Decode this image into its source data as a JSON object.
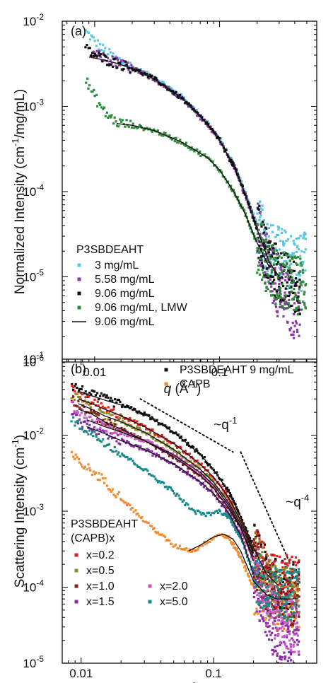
{
  "chart_data": [
    {
      "type": "scatter",
      "panel_label": "(a)",
      "xlabel": "q (Å⁻¹)",
      "xlabel_var": "q",
      "xlabel_unit": " (Å",
      "xlabel_unit_sup": "-1",
      "xlabel_unit_end": ")",
      "ylabel": "Normalized Intensity (cm⁻¹/mg/mL)",
      "ylabel_main": "Normalized Intensity (cm",
      "ylabel_sup": "-1",
      "ylabel_end": "/mg/mL)",
      "xscale": "log",
      "yscale": "log",
      "xlim": [
        0.0055,
        0.6
      ],
      "ylim": [
        1e-06,
        0.01
      ],
      "x_ticks": [
        {
          "v": 0.01,
          "label": "0.01"
        },
        {
          "v": 0.1,
          "label": "0.1"
        }
      ],
      "y_ticks": [
        {
          "v": 1e-06,
          "base": "10",
          "exp": "-6"
        },
        {
          "v": 1e-05,
          "base": "10",
          "exp": "-5"
        },
        {
          "v": 0.0001,
          "base": "10",
          "exp": "-4"
        },
        {
          "v": 0.001,
          "base": "10",
          "exp": "-3"
        },
        {
          "v": 0.01,
          "base": "10",
          "exp": "-2"
        }
      ],
      "legend": {
        "title": "P3SBDEAHT",
        "placement": "lower-left"
      },
      "series": [
        {
          "name": "3 mg/mL",
          "color": "#5bc8e0",
          "style": "points",
          "x": [
            0.0085,
            0.01,
            0.012,
            0.015,
            0.02,
            0.03,
            0.05,
            0.08,
            0.1,
            0.13,
            0.16,
            0.2,
            0.25,
            0.3,
            0.35,
            0.4,
            0.45,
            0.5
          ],
          "y": [
            0.0075,
            0.0058,
            0.0045,
            0.0036,
            0.0029,
            0.0022,
            0.0013,
            0.00065,
            0.00042,
            0.00021,
            0.0001,
            4e-05,
            2.2e-05,
            1.8e-05,
            1.6e-05,
            1.5e-05,
            1.5e-05,
            1.5e-05
          ]
        },
        {
          "name": "5.58 mg/mL",
          "color": "#8a3aa8",
          "style": "points",
          "x": [
            0.0095,
            0.012,
            0.015,
            0.02,
            0.03,
            0.05,
            0.08,
            0.1,
            0.13,
            0.16,
            0.2,
            0.25,
            0.3,
            0.35,
            0.4,
            0.45
          ],
          "y": [
            0.0042,
            0.0037,
            0.0033,
            0.0028,
            0.0021,
            0.00125,
            0.00062,
            0.0004,
            0.0002,
            9.5e-05,
            3.6e-05,
            1.3e-05,
            7e-06,
            5e-06,
            4e-06,
            4e-06
          ]
        },
        {
          "name": "9.06 mg/mL",
          "color": "#111111",
          "style": "points",
          "x": [
            0.0085,
            0.01,
            0.012,
            0.015,
            0.02,
            0.03,
            0.05,
            0.08,
            0.1,
            0.13,
            0.16,
            0.2,
            0.25,
            0.3,
            0.35,
            0.4,
            0.45
          ],
          "y": [
            0.0048,
            0.004,
            0.0036,
            0.0032,
            0.0028,
            0.0021,
            0.00125,
            0.00062,
            0.0004,
            0.0002,
            9.5e-05,
            3.6e-05,
            1.5e-05,
            1e-05,
            8.5e-06,
            8e-06,
            8e-06
          ]
        },
        {
          "name": "9.06 mg/mL, LMW",
          "color": "#2e8b3a",
          "style": "points",
          "x": [
            0.0085,
            0.01,
            0.012,
            0.015,
            0.02,
            0.03,
            0.05,
            0.08,
            0.1,
            0.13,
            0.16,
            0.2,
            0.25,
            0.3,
            0.35,
            0.4,
            0.45,
            0.5
          ],
          "y": [
            0.002,
            0.0013,
            0.00085,
            0.00065,
            0.0006,
            0.00052,
            0.00038,
            0.00025,
            0.00018,
            0.0001,
            5.5e-05,
            2.5e-05,
            1.3e-05,
            9e-06,
            8.5e-06,
            8e-06,
            8e-06,
            8e-06
          ]
        },
        {
          "name": "9.06 mg/mL",
          "color": "#111111",
          "style": "line",
          "x": [
            0.009,
            0.012,
            0.015,
            0.02,
            0.03,
            0.05,
            0.08,
            0.1,
            0.13,
            0.16,
            0.2,
            0.25,
            0.3
          ],
          "y": [
            0.0038,
            0.0035,
            0.0032,
            0.0028,
            0.0021,
            0.00125,
            0.00062,
            0.0004,
            0.0002,
            9.5e-05,
            3.6e-05,
            1.5e-05,
            1e-05
          ]
        },
        {
          "name": "",
          "color": "#111111",
          "style": "line",
          "x": [
            0.015,
            0.02,
            0.03,
            0.05,
            0.08,
            0.1,
            0.13,
            0.16,
            0.2,
            0.25
          ],
          "y": [
            0.00063,
            0.0006,
            0.00052,
            0.00038,
            0.00025,
            0.00018,
            0.0001,
            5.5e-05,
            2.5e-05,
            1.3e-05
          ]
        }
      ]
    },
    {
      "type": "scatter",
      "panel_label": "(b)",
      "xlabel": "q (Å⁻¹)",
      "xlabel_var": "q",
      "xlabel_unit": " (Å",
      "xlabel_unit_sup": "-1",
      "xlabel_unit_end": ")",
      "ylabel": "Scattering Intensity (cm⁻¹)",
      "ylabel_main": "Scattering Intensity (cm",
      "ylabel_sup": "-1",
      "ylabel_end": ")",
      "xscale": "log",
      "yscale": "log",
      "xlim": [
        0.0072,
        0.6
      ],
      "ylim": [
        1e-05,
        0.1
      ],
      "x_ticks": [
        {
          "v": 0.01,
          "label": "0.01"
        },
        {
          "v": 0.1,
          "label": "0.1"
        }
      ],
      "y_ticks": [
        {
          "v": 1e-05,
          "base": "10",
          "exp": "-5"
        },
        {
          "v": 0.0001,
          "base": "10",
          "exp": "-4"
        },
        {
          "v": 0.001,
          "base": "10",
          "exp": "-3"
        },
        {
          "v": 0.01,
          "base": "10",
          "exp": "-2"
        },
        {
          "v": 0.1,
          "base": "10",
          "exp": "-1"
        }
      ],
      "annotations": [
        {
          "text": "~q",
          "sup": "-1",
          "x": 0.1,
          "y": 0.012
        },
        {
          "text": "~q",
          "sup": "-4",
          "x": 0.35,
          "y": 0.00115
        }
      ],
      "guide_lines": [
        {
          "x": [
            0.028,
            0.14
          ],
          "y": [
            0.03,
            0.006
          ]
        },
        {
          "x": [
            0.16,
            0.38
          ],
          "y": [
            0.006,
            0.0002
          ]
        }
      ],
      "legend_top": {
        "placement": "top-right"
      },
      "legend_bottom": {
        "title": "P3SBDEAHT",
        "title2": "(CAPB)x",
        "placement": "lower-left"
      },
      "series": [
        {
          "name": "P3SBDEAHT 9 mg/mL",
          "color": "#111111",
          "style": "points",
          "legend": "top",
          "x": [
            0.0085,
            0.01,
            0.012,
            0.015,
            0.02,
            0.03,
            0.05,
            0.08,
            0.1,
            0.13,
            0.16,
            0.2,
            0.25,
            0.3,
            0.35,
            0.4,
            0.45
          ],
          "y": [
            0.045,
            0.04,
            0.034,
            0.03,
            0.025,
            0.019,
            0.011,
            0.0055,
            0.0035,
            0.0018,
            0.00085,
            0.00033,
            0.00015,
            0.00011,
            0.0001,
            0.0001,
            0.0001
          ]
        },
        {
          "name": "CAPB",
          "color": "#f28a2e",
          "style": "points",
          "legend": "top",
          "x": [
            0.0085,
            0.01,
            0.012,
            0.015,
            0.02,
            0.03,
            0.05,
            0.07,
            0.09,
            0.11,
            0.13,
            0.16,
            0.2,
            0.25,
            0.3,
            0.35,
            0.4,
            0.45
          ],
          "y": [
            0.0055,
            0.0042,
            0.0034,
            0.0025,
            0.0015,
            0.00075,
            0.00035,
            0.0003,
            0.0004,
            0.0005,
            0.00045,
            0.00025,
            0.0001,
            7e-05,
            6e-05,
            5.5e-05,
            5.5e-05,
            5.5e-05
          ]
        },
        {
          "name": "x=0.2",
          "color": "#e02020",
          "style": "points",
          "legend": "bottom",
          "x": [
            0.0085,
            0.01,
            0.012,
            0.015,
            0.02,
            0.03,
            0.05,
            0.08,
            0.1,
            0.13,
            0.16,
            0.2,
            0.25,
            0.3,
            0.35,
            0.4,
            0.45
          ],
          "y": [
            0.04,
            0.033,
            0.027,
            0.022,
            0.018,
            0.013,
            0.0078,
            0.0041,
            0.0028,
            0.0015,
            0.00075,
            0.0003,
            0.00015,
            0.00012,
            0.00012,
            0.00012,
            0.00012
          ]
        },
        {
          "name": "x=0.5",
          "color": "#8c8c2a",
          "style": "points",
          "legend": "bottom",
          "x": [
            0.0085,
            0.01,
            0.012,
            0.015,
            0.02,
            0.03,
            0.05,
            0.08,
            0.1,
            0.13,
            0.16,
            0.2,
            0.25,
            0.3,
            0.35,
            0.4,
            0.45
          ],
          "y": [
            0.035,
            0.028,
            0.022,
            0.018,
            0.015,
            0.011,
            0.0065,
            0.0035,
            0.0024,
            0.0013,
            0.00068,
            0.00028,
            0.00012,
            9e-05,
            8.5e-05,
            8.5e-05,
            8.5e-05
          ]
        },
        {
          "name": "x=1.0",
          "color": "#8b1a1a",
          "style": "points",
          "legend": "bottom",
          "x": [
            0.0085,
            0.01,
            0.012,
            0.015,
            0.02,
            0.03,
            0.05,
            0.08,
            0.1,
            0.13,
            0.16,
            0.2,
            0.25,
            0.3,
            0.35,
            0.4,
            0.45
          ],
          "y": [
            0.03,
            0.024,
            0.019,
            0.015,
            0.012,
            0.0085,
            0.0052,
            0.0029,
            0.002,
            0.0011,
            0.0006,
            0.00025,
            0.00011,
            8e-05,
            7e-05,
            7e-05,
            7e-05
          ]
        },
        {
          "name": "x=1.5",
          "color": "#8a2aa8",
          "style": "points",
          "legend": "bottom",
          "x": [
            0.0085,
            0.01,
            0.012,
            0.015,
            0.02,
            0.03,
            0.05,
            0.08,
            0.1,
            0.13,
            0.16,
            0.2,
            0.25,
            0.3,
            0.35,
            0.4,
            0.45
          ],
          "y": [
            0.02,
            0.015,
            0.012,
            0.01,
            0.0085,
            0.0065,
            0.0042,
            0.0024,
            0.0017,
            0.00095,
            0.00048,
            0.00015,
            4e-05,
            2e-05,
            1.5e-05,
            1.3e-05,
            1.3e-05
          ]
        },
        {
          "name": "x=2.0",
          "color": "#c85ac8",
          "style": "points",
          "legend": "bottom",
          "x": [
            0.0085,
            0.01,
            0.012,
            0.015,
            0.02,
            0.03,
            0.05,
            0.08,
            0.1,
            0.13,
            0.16,
            0.2,
            0.25,
            0.3,
            0.35,
            0.4,
            0.45
          ],
          "y": [
            0.025,
            0.02,
            0.016,
            0.013,
            0.011,
            0.0085,
            0.0055,
            0.0032,
            0.0022,
            0.0012,
            0.00062,
            0.00022,
            7e-05,
            4e-05,
            3e-05,
            3e-05,
            3e-05
          ]
        },
        {
          "name": "x=5.0",
          "color": "#1a8a8a",
          "style": "points",
          "legend": "bottom",
          "x": [
            0.0085,
            0.01,
            0.012,
            0.015,
            0.02,
            0.03,
            0.05,
            0.07,
            0.09,
            0.11,
            0.13,
            0.16,
            0.2,
            0.25,
            0.3,
            0.35,
            0.4,
            0.45
          ],
          "y": [
            0.016,
            0.013,
            0.0105,
            0.0082,
            0.0058,
            0.0035,
            0.0018,
            0.001,
            0.0009,
            0.001,
            0.00085,
            0.00045,
            0.00016,
            9e-05,
            8e-05,
            8e-05,
            8e-05,
            8e-05
          ]
        }
      ],
      "fit_lines": [
        {
          "x": [
            0.0095,
            0.012,
            0.015,
            0.02,
            0.03,
            0.05,
            0.08,
            0.1,
            0.13,
            0.16,
            0.2,
            0.25,
            0.3
          ],
          "y": [
            0.038,
            0.033,
            0.029,
            0.025,
            0.019,
            0.011,
            0.0055,
            0.0035,
            0.0018,
            0.00085,
            0.00033,
            0.00015,
            0.00011
          ]
        },
        {
          "x": [
            0.0095,
            0.012,
            0.015,
            0.02,
            0.03,
            0.05,
            0.08,
            0.1,
            0.13,
            0.16,
            0.2
          ],
          "y": [
            0.03,
            0.026,
            0.022,
            0.018,
            0.013,
            0.0078,
            0.0041,
            0.0028,
            0.0015,
            0.00075,
            0.0003
          ]
        },
        {
          "x": [
            0.0095,
            0.012,
            0.015,
            0.02,
            0.03,
            0.05,
            0.08,
            0.1,
            0.13,
            0.16,
            0.2
          ],
          "y": [
            0.026,
            0.022,
            0.018,
            0.015,
            0.011,
            0.0065,
            0.0035,
            0.0024,
            0.0013,
            0.00068,
            0.00028
          ]
        },
        {
          "x": [
            0.0095,
            0.012,
            0.015,
            0.02,
            0.03,
            0.05,
            0.08,
            0.1,
            0.13,
            0.16,
            0.2
          ],
          "y": [
            0.022,
            0.019,
            0.015,
            0.012,
            0.0085,
            0.0052,
            0.0029,
            0.002,
            0.0011,
            0.0006,
            0.00025
          ]
        },
        {
          "x": [
            0.011,
            0.015,
            0.02,
            0.03,
            0.05,
            0.08,
            0.1,
            0.13,
            0.16,
            0.2
          ],
          "y": [
            0.016,
            0.013,
            0.011,
            0.0085,
            0.0055,
            0.0032,
            0.0022,
            0.0012,
            0.00062,
            0.00022
          ]
        },
        {
          "x": [
            0.011,
            0.015,
            0.02,
            0.03,
            0.05,
            0.08,
            0.1,
            0.13,
            0.16,
            0.2
          ],
          "y": [
            0.013,
            0.0105,
            0.0085,
            0.0065,
            0.0042,
            0.0024,
            0.0017,
            0.00095,
            0.00048,
            0.00015
          ]
        },
        {
          "x": [
            0.065,
            0.08,
            0.1,
            0.12,
            0.14,
            0.16,
            0.2,
            0.25,
            0.3,
            0.35,
            0.4
          ],
          "y": [
            0.0003,
            0.00036,
            0.00046,
            0.0005,
            0.00043,
            0.0003,
            0.00012,
            8e-05,
            7e-05,
            7e-05,
            7e-05
          ]
        }
      ]
    }
  ]
}
